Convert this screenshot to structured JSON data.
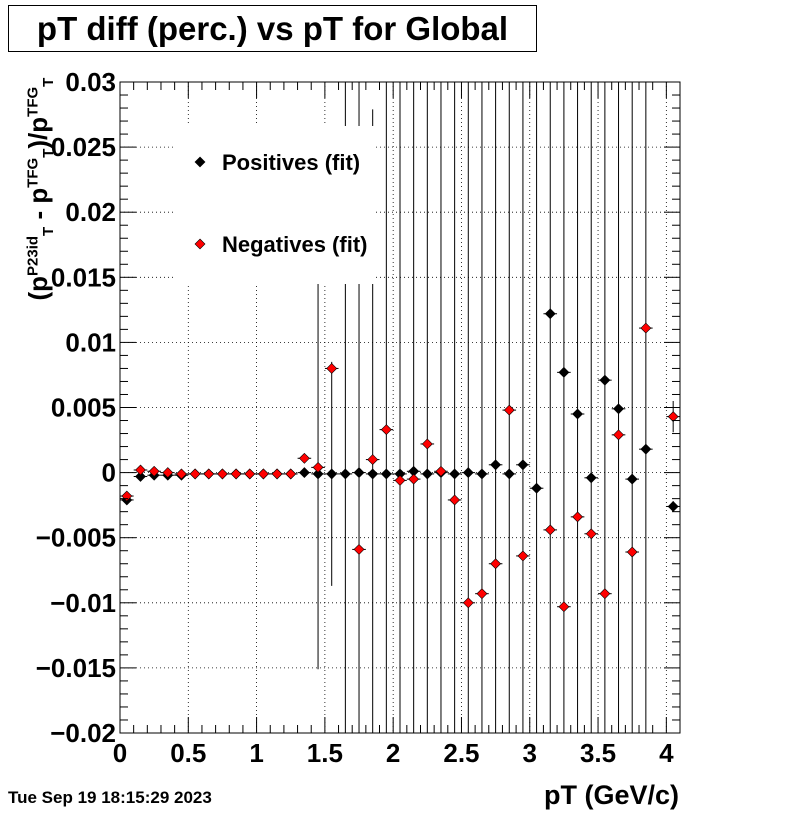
{
  "chart_data": {
    "type": "scatter",
    "title": "pT diff (perc.) vs pT for Global",
    "xlabel": "pT (GeV/c)",
    "ylabel_parts": [
      "(p",
      "P23id",
      "T",
      " - p",
      "TFG",
      "T",
      ")/p",
      "TFG",
      "T"
    ],
    "xlim": [
      0,
      4.1
    ],
    "ylim": [
      -0.02,
      0.03
    ],
    "x_ticks": [
      "0",
      "0.5",
      "1",
      "1.5",
      "2",
      "2.5",
      "3",
      "3.5",
      "4"
    ],
    "y_ticks": [
      "0.03",
      "0.025",
      "0.02",
      "0.015",
      "0.01",
      "0.005",
      "0",
      "−0.005",
      "−0.01",
      "−0.015",
      "−0.02"
    ],
    "grid": true,
    "legend_placement": "top-left",
    "series": [
      {
        "name": "Positives (fit)",
        "color": "#000000",
        "points": [
          {
            "x": 0.05,
            "y": -0.0021,
            "err": 0.0003
          },
          {
            "x": 0.15,
            "y": -0.0003,
            "err": 0.0001
          },
          {
            "x": 0.25,
            "y": -0.0002,
            "err": 0.0001
          },
          {
            "x": 0.35,
            "y": -0.0002,
            "err": 0.0001
          },
          {
            "x": 0.45,
            "y": -0.0002,
            "err": 0.0001
          },
          {
            "x": 0.55,
            "y": -0.0001,
            "err": 0.0001
          },
          {
            "x": 0.65,
            "y": -0.0001,
            "err": 0.0001
          },
          {
            "x": 0.75,
            "y": -0.0001,
            "err": 0.0001
          },
          {
            "x": 0.85,
            "y": -0.0001,
            "err": 0.0001
          },
          {
            "x": 0.95,
            "y": -0.0001,
            "err": 0.0001
          },
          {
            "x": 1.05,
            "y": -0.0001,
            "err": 0.0001
          },
          {
            "x": 1.15,
            "y": -0.0001,
            "err": 0.0001
          },
          {
            "x": 1.25,
            "y": -0.0001,
            "err": 0.0001
          },
          {
            "x": 1.35,
            "y": 0.0,
            "err": 0.0002
          },
          {
            "x": 1.45,
            "y": -0.0001,
            "err": 0.015
          },
          {
            "x": 1.55,
            "y": -0.0001,
            "err": 0.0086
          },
          {
            "x": 1.65,
            "y": -0.0001,
            "err": 0.04
          },
          {
            "x": 1.75,
            "y": 0.0,
            "err": 0.04
          },
          {
            "x": 1.85,
            "y": -0.0001,
            "err": 0.028
          },
          {
            "x": 1.95,
            "y": -0.0001,
            "err": 0.04
          },
          {
            "x": 2.05,
            "y": -0.0001,
            "err": 0.04
          },
          {
            "x": 2.15,
            "y": 0.0001,
            "err": 0.04
          },
          {
            "x": 2.25,
            "y": -0.0001,
            "err": 0.04
          },
          {
            "x": 2.35,
            "y": 0.0,
            "err": 0.04
          },
          {
            "x": 2.45,
            "y": -0.0001,
            "err": 0.04
          },
          {
            "x": 2.55,
            "y": 0.0,
            "err": 0.04
          },
          {
            "x": 2.65,
            "y": -0.0001,
            "err": 0.04
          },
          {
            "x": 2.75,
            "y": 0.0006,
            "err": 0.04
          },
          {
            "x": 2.85,
            "y": -0.0001,
            "err": 0.04
          },
          {
            "x": 2.95,
            "y": 0.0006,
            "err": 0.04
          },
          {
            "x": 3.05,
            "y": -0.0012,
            "err": 0.04
          },
          {
            "x": 3.15,
            "y": 0.0122,
            "err": 0.04
          },
          {
            "x": 3.25,
            "y": 0.0077,
            "err": 0.04
          },
          {
            "x": 3.35,
            "y": 0.0045,
            "err": 0.04
          },
          {
            "x": 3.45,
            "y": -0.0004,
            "err": 0.04
          },
          {
            "x": 3.55,
            "y": 0.0071,
            "err": 0.04
          },
          {
            "x": 3.65,
            "y": 0.0049,
            "err": 0.04
          },
          {
            "x": 3.75,
            "y": -0.0005,
            "err": 0.04
          },
          {
            "x": 3.85,
            "y": 0.0018,
            "err": 0.04
          },
          {
            "x": 4.05,
            "y": -0.0026,
            "err": 0.0004
          }
        ]
      },
      {
        "name": "Negatives (fit)",
        "color": "#ff0000",
        "points": [
          {
            "x": 0.05,
            "y": -0.0018,
            "err": 0.0002
          },
          {
            "x": 0.15,
            "y": 0.0002,
            "err": 0.0001
          },
          {
            "x": 0.25,
            "y": 0.0001,
            "err": 0.0001
          },
          {
            "x": 0.35,
            "y": 0.0,
            "err": 0.0001
          },
          {
            "x": 0.45,
            "y": -0.0001,
            "err": 0.0001
          },
          {
            "x": 0.55,
            "y": -0.0001,
            "err": 0.0001
          },
          {
            "x": 0.65,
            "y": -0.0001,
            "err": 0.0001
          },
          {
            "x": 0.75,
            "y": -0.0001,
            "err": 0.0001
          },
          {
            "x": 0.85,
            "y": -0.0001,
            "err": 0.0001
          },
          {
            "x": 0.95,
            "y": -0.0001,
            "err": 0.0001
          },
          {
            "x": 1.05,
            "y": -0.0001,
            "err": 0.0001
          },
          {
            "x": 1.15,
            "y": -0.0001,
            "err": 0.0001
          },
          {
            "x": 1.25,
            "y": -0.0001,
            "err": 0.0001
          },
          {
            "x": 1.35,
            "y": 0.0011,
            "err": 0.0002
          },
          {
            "x": 1.45,
            "y": 0.0004,
            "err": 0.0003
          },
          {
            "x": 1.55,
            "y": 0.008,
            "err": 0.0003
          },
          {
            "x": 1.75,
            "y": -0.0059,
            "err": 0.0003
          },
          {
            "x": 1.85,
            "y": 0.001,
            "err": 0.0003
          },
          {
            "x": 1.95,
            "y": 0.0033,
            "err": 0.0003
          },
          {
            "x": 2.05,
            "y": -0.0006,
            "err": 0.0003
          },
          {
            "x": 2.15,
            "y": -0.0005,
            "err": 0.0003
          },
          {
            "x": 2.25,
            "y": 0.0022,
            "err": 0.0003
          },
          {
            "x": 2.35,
            "y": 0.0001,
            "err": 0.0003
          },
          {
            "x": 2.45,
            "y": -0.0021,
            "err": 0.0003
          },
          {
            "x": 2.55,
            "y": -0.01,
            "err": 0.0003
          },
          {
            "x": 2.65,
            "y": -0.0093,
            "err": 0.0003
          },
          {
            "x": 2.75,
            "y": -0.007,
            "err": 0.0003
          },
          {
            "x": 2.85,
            "y": 0.0048,
            "err": 0.0003
          },
          {
            "x": 2.95,
            "y": -0.0064,
            "err": 0.0003
          },
          {
            "x": 3.15,
            "y": -0.0044,
            "err": 0.0003
          },
          {
            "x": 3.25,
            "y": -0.0103,
            "err": 0.0003
          },
          {
            "x": 3.35,
            "y": -0.0034,
            "err": 0.0003
          },
          {
            "x": 3.45,
            "y": -0.0047,
            "err": 0.0003
          },
          {
            "x": 3.55,
            "y": -0.0093,
            "err": 0.0003
          },
          {
            "x": 3.65,
            "y": 0.0029,
            "err": 0.0003
          },
          {
            "x": 3.75,
            "y": -0.0061,
            "err": 0.0003
          },
          {
            "x": 3.85,
            "y": 0.0111,
            "err": 0.0003
          },
          {
            "x": 4.05,
            "y": 0.0043,
            "err": 0.0012
          }
        ]
      }
    ]
  },
  "footer": {
    "timestamp": "Tue Sep 19 18:15:29 2023"
  }
}
